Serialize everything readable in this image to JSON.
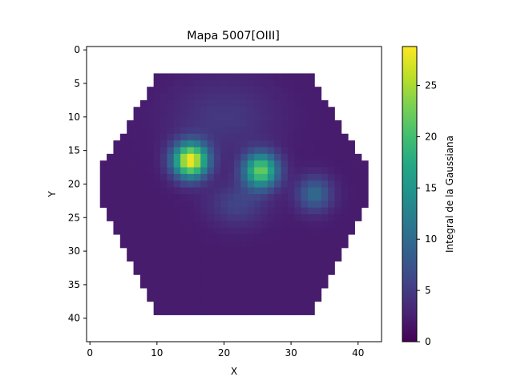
{
  "chart_data": {
    "type": "heatmap",
    "title": "Mapa 5007[OIII]",
    "xlabel": "X",
    "ylabel": "Y",
    "colorbar_label": "Integral de la Gaussiana",
    "colormap": "viridis",
    "xlim": [
      -0.5,
      43.5
    ],
    "ylim": [
      43.5,
      -0.5
    ],
    "x_ticks": [
      0,
      10,
      20,
      30,
      40
    ],
    "y_ticks": [
      0,
      5,
      10,
      15,
      20,
      25,
      30,
      35,
      40
    ],
    "colorbar_range": [
      0,
      28.8
    ],
    "colorbar_ticks": [
      0,
      5,
      10,
      15,
      20,
      25
    ],
    "grid_size": [
      44,
      44
    ],
    "footprint": "hexagonal field of view, roughly x 2-42, y 4-39; cells outside are blank",
    "background_level": 2.2,
    "sources": [
      {
        "x": 15,
        "y": 16.5,
        "peak": 28.5
      },
      {
        "x": 25.5,
        "y": 18,
        "peak": 22
      },
      {
        "x": 33.5,
        "y": 21.5,
        "peak": 10
      }
    ],
    "filament_level": 8
  }
}
